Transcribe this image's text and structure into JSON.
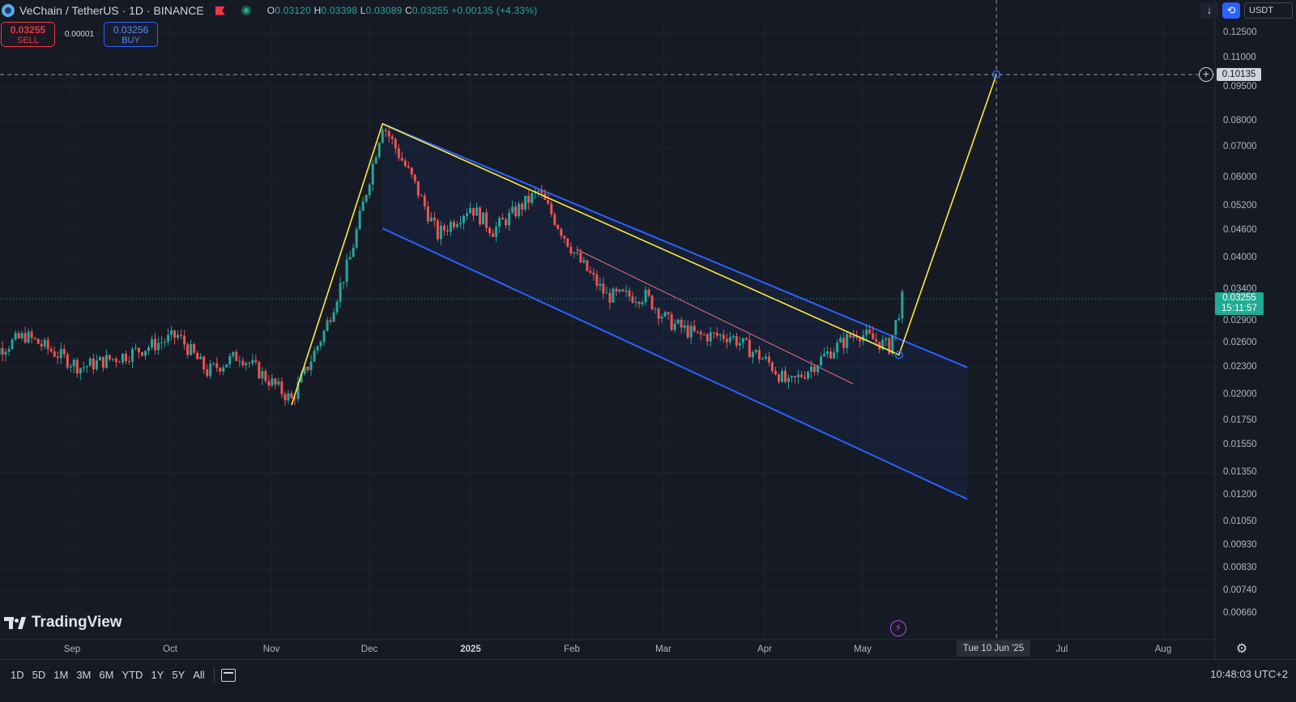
{
  "header": {
    "symbol_title": "VeChain / TetherUS · 1D · BINANCE",
    "ohlc": {
      "o_key": "O",
      "o_val": "0.03120",
      "h_key": "H",
      "h_val": "0.03398",
      "l_key": "L",
      "l_val": "0.03089",
      "c_key": "C",
      "c_val": "0.03255",
      "change": "+0.00135 (+4.33%)"
    }
  },
  "trade": {
    "sell_price": "0.03255",
    "sell_label": "SELL",
    "spread": "0.00001",
    "buy_price": "0.03256",
    "buy_label": "BUY"
  },
  "toolbar": {
    "currency": "USDT",
    "download_icon": "download-icon",
    "sync_icon": "sync-icon"
  },
  "price_axis": {
    "labels": [
      "0.12500",
      "0.11000",
      "0.09500",
      "0.08000",
      "0.07000",
      "0.06000",
      "0.05200",
      "0.04600",
      "0.04000",
      "0.03400",
      "0.02900",
      "0.02600",
      "0.02300",
      "0.02000",
      "0.01750",
      "0.01550",
      "0.01350",
      "0.01200",
      "0.01050",
      "0.00930",
      "0.00830",
      "0.00740",
      "0.00660"
    ],
    "current_price": "0.03255",
    "countdown": "15:11:57",
    "target_price": "0.10135"
  },
  "time_axis": {
    "labels": [
      "Sep",
      "Oct",
      "Nov",
      "Dec",
      "2025",
      "Feb",
      "Mar",
      "Apr",
      "May",
      "Jul",
      "Aug"
    ],
    "crosshair_date": "Tue 10 Jun '25"
  },
  "branding": {
    "logo_text": "TradingView"
  },
  "bottom_bar": {
    "ranges": [
      "1D",
      "5D",
      "1M",
      "3M",
      "6M",
      "YTD",
      "1Y",
      "5Y",
      "All"
    ],
    "clock": "10:48:03 UTC+2"
  },
  "colors": {
    "up": "#26a69a",
    "down": "#ef5350",
    "channel": "#2962ff",
    "projection": "#ffeb3b",
    "background": "#161a25",
    "midline": "#e57373"
  },
  "chart_data": {
    "type": "candlestick",
    "symbol": "VETUSDT",
    "scale": "log",
    "ylim": [
      0.0062,
      0.13
    ],
    "x_range": [
      "2024-08-10",
      "2024-08-31"
    ],
    "sample_closes": [
      {
        "date": "2024-09-01",
        "close": 0.0235
      },
      {
        "date": "2024-10-01",
        "close": 0.024
      },
      {
        "date": "2024-11-05",
        "close": 0.0195
      },
      {
        "date": "2024-12-03",
        "close": 0.079
      },
      {
        "date": "2025-01-01",
        "close": 0.046
      },
      {
        "date": "2025-02-01",
        "close": 0.04
      },
      {
        "date": "2025-03-01",
        "close": 0.03
      },
      {
        "date": "2025-04-07",
        "close": 0.021
      },
      {
        "date": "2025-05-01",
        "close": 0.025
      },
      {
        "date": "2025-05-12",
        "close": 0.03255
      }
    ],
    "annotations": {
      "descending_channel": {
        "upper": [
          [
            "2024-12-03",
            0.079
          ],
          [
            "2025-06-01",
            0.023
          ]
        ],
        "lower": [
          [
            "2024-12-03",
            0.0465
          ],
          [
            "2025-06-01",
            0.0118
          ]
        ]
      },
      "projection_path": [
        [
          "2024-11-05",
          0.019
        ],
        [
          "2024-12-03",
          0.079
        ],
        [
          "2025-05-11",
          0.0245
        ],
        [
          "2025-06-10",
          0.10135
        ]
      ],
      "target": 0.10135
    }
  }
}
